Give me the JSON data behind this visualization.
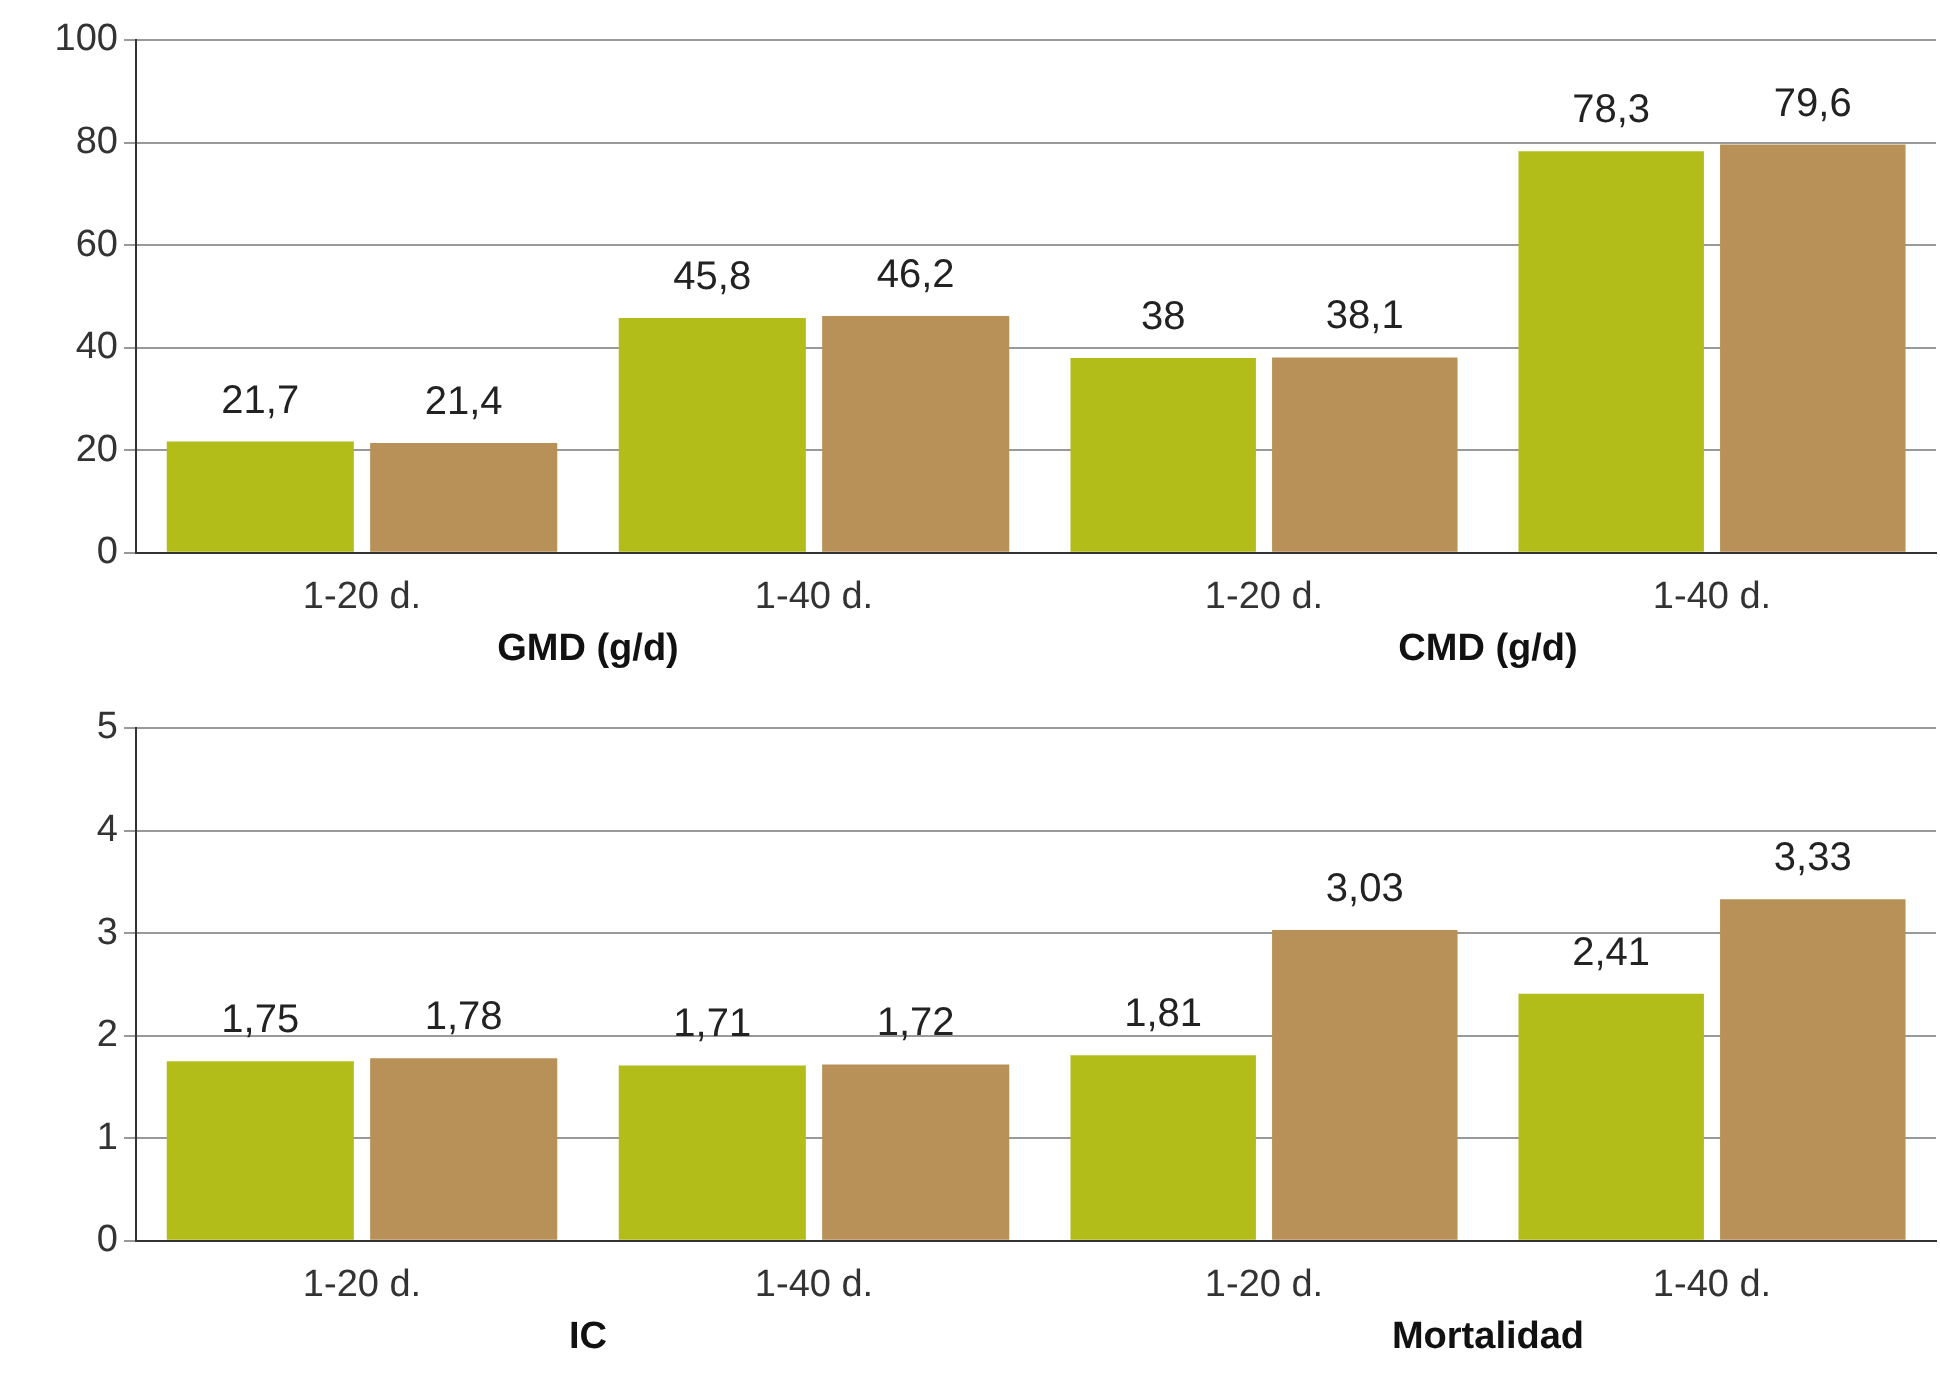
{
  "chart_data": [
    {
      "type": "bar",
      "xlabel": "GMD (g/d)",
      "categories": [
        "1-20 d.",
        "1-40 d."
      ],
      "ylim": [
        0,
        100
      ],
      "yticks": [
        0,
        20,
        40,
        60,
        80,
        100
      ],
      "grid": "y",
      "series": [
        {
          "color": "#b3bd1a",
          "values": [
            21.7,
            45.8
          ],
          "value_labels": [
            "21,7",
            "45,8"
          ]
        },
        {
          "color": "#b89158",
          "values": [
            21.4,
            46.2
          ],
          "value_labels": [
            "21,4",
            "46,2"
          ]
        }
      ]
    },
    {
      "type": "bar",
      "xlabel": "CMD (g/d)",
      "categories": [
        "1-20 d.",
        "1-40 d."
      ],
      "ylim": [
        0,
        100
      ],
      "yticks": [
        0,
        20,
        40,
        60,
        80,
        100
      ],
      "grid": "y",
      "tick_labels": "x",
      "series": [
        {
          "color": "#b3bd1a",
          "values": [
            38,
            78.3
          ],
          "value_labels": [
            "38",
            "78,3"
          ]
        },
        {
          "color": "#b89158",
          "values": [
            38.1,
            79.6
          ],
          "value_labels": [
            "38,1",
            "79,6"
          ]
        }
      ]
    },
    {
      "type": "bar",
      "xlabel": "IC",
      "categories": [
        "1-20 d.",
        "1-40 d."
      ],
      "ylim": [
        0,
        5
      ],
      "yticks": [
        0,
        1,
        2,
        3,
        4,
        5
      ],
      "grid": "y",
      "series": [
        {
          "color": "#b3bd1a",
          "values": [
            1.75,
            1.71
          ],
          "value_labels": [
            "1,75",
            "1,71"
          ]
        },
        {
          "color": "#b89158",
          "values": [
            1.78,
            1.72
          ],
          "value_labels": [
            "1,78",
            "1,72"
          ]
        }
      ]
    },
    {
      "type": "bar",
      "xlabel": "Mortalidad",
      "categories": [
        "1-20 d.",
        "1-40 d."
      ],
      "ylim": [
        0,
        5
      ],
      "yticks": [
        0,
        1,
        2,
        3,
        4,
        5
      ],
      "grid": "y",
      "tick_labels": "x",
      "series": [
        {
          "color": "#b3bd1a",
          "values": [
            1.81,
            2.41
          ],
          "value_labels": [
            "1,81",
            "2,41"
          ]
        },
        {
          "color": "#b89158",
          "values": [
            3.03,
            3.33
          ],
          "value_labels": [
            "3,03",
            "3,33"
          ]
        }
      ]
    }
  ]
}
